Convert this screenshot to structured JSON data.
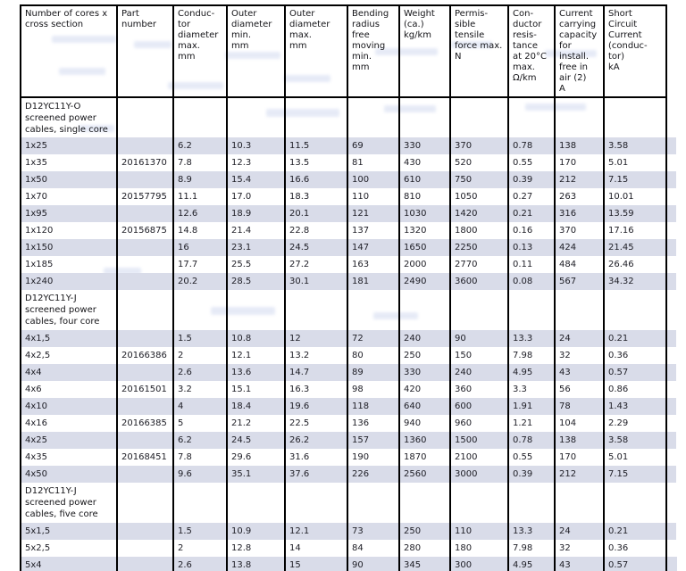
{
  "table": {
    "shaded_row_color": "#d9dce9",
    "border_color": "#000000",
    "text_color": "#202028",
    "columns": [
      "Number of cores x\ncross section",
      "Part\nnumber",
      "Conduc-\ntor\ndiameter\nmax.\nmm",
      "Outer\ndiameter\nmin.\nmm",
      "Outer\ndiameter\nmax.\nmm",
      "Bending\nradius\nfree\nmoving\nmin.\nmm",
      "Weight\n(ca.)\nkg/km",
      "Permis-\nsible\ntensile\nforce max.\nN",
      "Con-\nductor\nresis-\ntance\nat 20°C\nmax.\nΩ/km",
      "Current\ncarrying\ncapacity\nfor\ninstall.\nfree in\nair (2)\nA",
      "Short\nCircuit\nCurrent\n(conduc-\ntor)\nkA"
    ],
    "sections": [
      {
        "title": "D12YC11Y-O\nscreened power\ncables, single core",
        "rows": [
          [
            "1x25",
            "",
            "6.2",
            "10.3",
            "11.5",
            "69",
            "330",
            "370",
            "0.78",
            "138",
            "3.58"
          ],
          [
            "1x35",
            "20161370",
            "7.8",
            "12.3",
            "13.5",
            "81",
            "430",
            "520",
            "0.55",
            "170",
            "5.01"
          ],
          [
            "1x50",
            "",
            "8.9",
            "15.4",
            "16.6",
            "100",
            "610",
            "750",
            "0.39",
            "212",
            "7.15"
          ],
          [
            "1x70",
            "20157795",
            "11.1",
            "17.0",
            "18.3",
            "110",
            "810",
            "1050",
            "0.27",
            "263",
            "10.01"
          ],
          [
            "1x95",
            "",
            "12.6",
            "18.9",
            "20.1",
            "121",
            "1030",
            "1420",
            "0.21",
            "316",
            "13.59"
          ],
          [
            "1x120",
            "20156875",
            "14.8",
            "21.4",
            "22.8",
            "137",
            "1320",
            "1800",
            "0.16",
            "370",
            "17.16"
          ],
          [
            "1x150",
            "",
            "16",
            "23.1",
            "24.5",
            "147",
            "1650",
            "2250",
            "0.13",
            "424",
            "21.45"
          ],
          [
            "1x185",
            "",
            "17.7",
            "25.5",
            "27.2",
            "163",
            "2000",
            "2770",
            "0.11",
            "484",
            "26.46"
          ],
          [
            "1x240",
            "",
            "20.2",
            "28.5",
            "30.1",
            "181",
            "2490",
            "3600",
            "0.08",
            "567",
            "34.32"
          ]
        ]
      },
      {
        "title": "D12YC11Y-J\nscreened power\ncables, four core",
        "rows": [
          [
            "4x1,5",
            "",
            "1.5",
            "10.8",
            "12",
            "72",
            "240",
            "90",
            "13.3",
            "24",
            "0.21"
          ],
          [
            "4x2,5",
            "20166386",
            "2",
            "12.1",
            "13.2",
            "80",
            "250",
            "150",
            "7.98",
            "32",
            "0.36"
          ],
          [
            "4x4",
            "",
            "2.6",
            "13.6",
            "14.7",
            "89",
            "330",
            "240",
            "4.95",
            "43",
            "0.57"
          ],
          [
            "4x6",
            "20161501",
            "3.2",
            "15.1",
            "16.3",
            "98",
            "420",
            "360",
            "3.3",
            "56",
            "0.86"
          ],
          [
            "4x10",
            "",
            "4",
            "18.4",
            "19.6",
            "118",
            "640",
            "600",
            "1.91",
            "78",
            "1.43"
          ],
          [
            "4x16",
            "20166385",
            "5",
            "21.2",
            "22.5",
            "136",
            "940",
            "960",
            "1.21",
            "104",
            "2.29"
          ],
          [
            "4x25",
            "",
            "6.2",
            "24.5",
            "26.2",
            "157",
            "1360",
            "1500",
            "0.78",
            "138",
            "3.58"
          ],
          [
            "4x35",
            "20168451",
            "7.8",
            "29.6",
            "31.6",
            "190",
            "1870",
            "2100",
            "0.55",
            "170",
            "5.01"
          ],
          [
            "4x50",
            "",
            "9.6",
            "35.1",
            "37.6",
            "226",
            "2560",
            "3000",
            "0.39",
            "212",
            "7.15"
          ]
        ]
      },
      {
        "title": "D12YC11Y-J\nscreened power\ncables, five core",
        "rows": [
          [
            "5x1,5",
            "",
            "1.5",
            "10.9",
            "12.1",
            "73",
            "250",
            "110",
            "13.3",
            "24",
            "0.21"
          ],
          [
            "5x2,5",
            "",
            "2",
            "12.8",
            "14",
            "84",
            "280",
            "180",
            "7.98",
            "32",
            "0.36"
          ],
          [
            "5x4",
            "",
            "2.6",
            "13.8",
            "15",
            "90",
            "345",
            "300",
            "4.95",
            "43",
            "0.57"
          ]
        ]
      }
    ]
  }
}
